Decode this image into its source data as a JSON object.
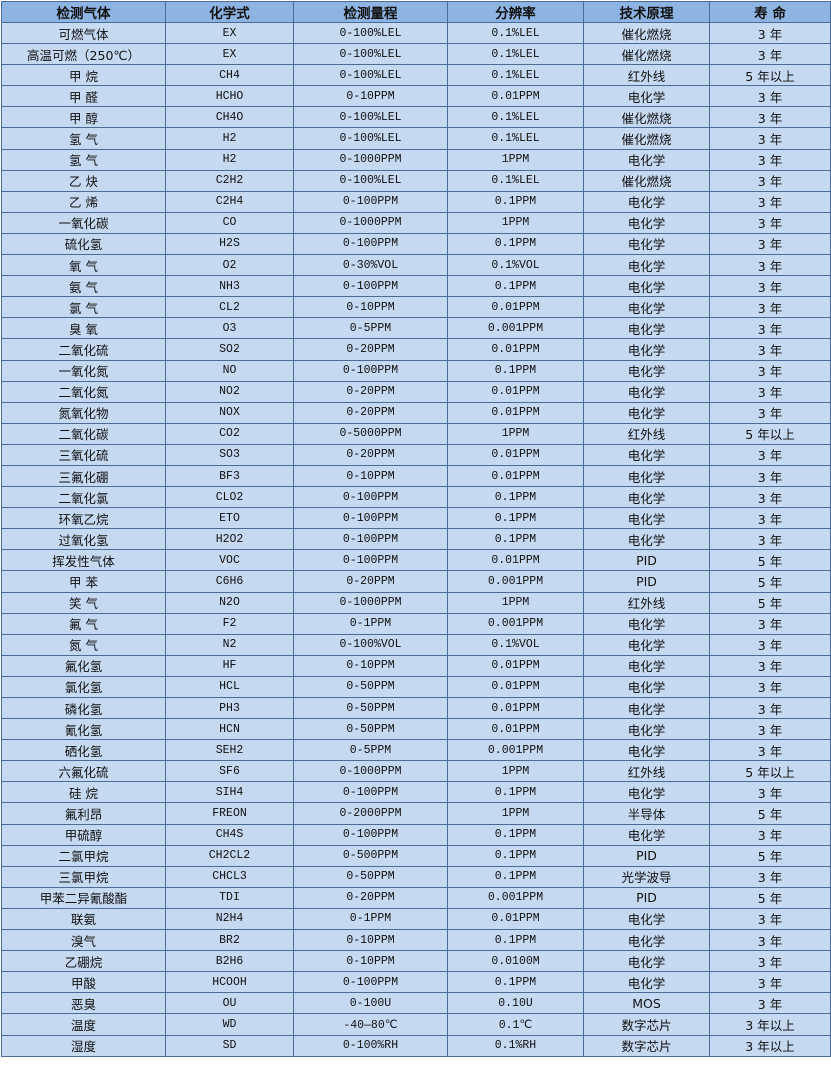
{
  "colors": {
    "header_bg": "#8db4e2",
    "row_bg": "#c5d9f1",
    "border": "#4a6c99"
  },
  "headers": [
    "检测气体",
    "化学式",
    "检测量程",
    "分辨率",
    "技术原理",
    "寿 命"
  ],
  "rows": [
    [
      "可燃气体",
      "EX",
      "0-100%LEL",
      "0.1%LEL",
      "催化燃烧",
      "3 年"
    ],
    [
      "高温可燃（250℃）",
      "EX",
      "0-100%LEL",
      "0.1%LEL",
      "催化燃烧",
      "3 年"
    ],
    [
      "甲 烷",
      "CH4",
      "0-100%LEL",
      "0.1%LEL",
      "红外线",
      "5 年以上"
    ],
    [
      "甲 醛",
      "HCHO",
      "0-10PPM",
      "0.01PPM",
      "电化学",
      "3 年"
    ],
    [
      "甲 醇",
      "CH4O",
      "0-100%LEL",
      "0.1%LEL",
      "催化燃烧",
      "3 年"
    ],
    [
      "氢 气",
      "H2",
      "0-100%LEL",
      "0.1%LEL",
      "催化燃烧",
      "3 年"
    ],
    [
      "氢 气",
      "H2",
      "0-1000PPM",
      "1PPM",
      "电化学",
      "3 年"
    ],
    [
      "乙 炔",
      "C2H2",
      "0-100%LEL",
      "0.1%LEL",
      "催化燃烧",
      "3 年"
    ],
    [
      "乙 烯",
      "C2H4",
      "0-100PPM",
      "0.1PPM",
      "电化学",
      "3 年"
    ],
    [
      "一氧化碳",
      "CO",
      "0-1000PPM",
      "1PPM",
      "电化学",
      "3 年"
    ],
    [
      "硫化氢",
      "H2S",
      "0-100PPM",
      "0.1PPM",
      "电化学",
      "3 年"
    ],
    [
      "氧 气",
      "O2",
      "0-30%VOL",
      "0.1%VOL",
      "电化学",
      "3 年"
    ],
    [
      "氨 气",
      "NH3",
      "0-100PPM",
      "0.1PPM",
      "电化学",
      "3 年"
    ],
    [
      "氯 气",
      "CL2",
      "0-10PPM",
      "0.01PPM",
      "电化学",
      "3 年"
    ],
    [
      "臭 氧",
      "O3",
      "0-5PPM",
      "0.001PPM",
      "电化学",
      "3 年"
    ],
    [
      "二氧化硫",
      "SO2",
      "0-20PPM",
      "0.01PPM",
      "电化学",
      "3 年"
    ],
    [
      "一氧化氮",
      "NO",
      "0-100PPM",
      "0.1PPM",
      "电化学",
      "3 年"
    ],
    [
      "二氧化氮",
      "NO2",
      "0-20PPM",
      "0.01PPM",
      "电化学",
      "3 年"
    ],
    [
      "氮氧化物",
      "NOX",
      "0-20PPM",
      "0.01PPM",
      "电化学",
      "3 年"
    ],
    [
      "二氧化碳",
      "CO2",
      "0-5000PPM",
      "1PPM",
      "红外线",
      "5 年以上"
    ],
    [
      "三氧化硫",
      "SO3",
      "0-20PPM",
      "0.01PPM",
      "电化学",
      "3 年"
    ],
    [
      "三氟化硼",
      "BF3",
      "0-10PPM",
      "0.01PPM",
      "电化学",
      "3 年"
    ],
    [
      "二氧化氯",
      "CLO2",
      "0-100PPM",
      "0.1PPM",
      "电化学",
      "3 年"
    ],
    [
      "环氧乙烷",
      "ETO",
      "0-100PPM",
      "0.1PPM",
      "电化学",
      "3 年"
    ],
    [
      "过氧化氢",
      "H2O2",
      "0-100PPM",
      "0.1PPM",
      "电化学",
      "3 年"
    ],
    [
      "挥发性气体",
      "VOC",
      "0-100PPM",
      "0.01PPM",
      "PID",
      "5 年"
    ],
    [
      "甲 苯",
      "C6H6",
      "0-20PPM",
      "0.001PPM",
      "PID",
      "5 年"
    ],
    [
      "笑 气",
      "N2O",
      "0-1000PPM",
      "1PPM",
      "红外线",
      "5 年"
    ],
    [
      "氟 气",
      "F2",
      "0-1PPM",
      "0.001PPM",
      "电化学",
      "3 年"
    ],
    [
      "氮 气",
      "N2",
      "0-100%VOL",
      "0.1%VOL",
      "电化学",
      "3 年"
    ],
    [
      "氟化氢",
      "HF",
      "0-10PPM",
      "0.01PPM",
      "电化学",
      "3 年"
    ],
    [
      "氯化氢",
      "HCL",
      "0-50PPM",
      "0.01PPM",
      "电化学",
      "3 年"
    ],
    [
      "磷化氢",
      "PH3",
      "0-50PPM",
      "0.01PPM",
      "电化学",
      "3 年"
    ],
    [
      "氰化氢",
      "HCN",
      "0-50PPM",
      "0.01PPM",
      "电化学",
      "3 年"
    ],
    [
      "硒化氢",
      "SEH2",
      "0-5PPM",
      "0.001PPM",
      "电化学",
      "3 年"
    ],
    [
      "六氟化硫",
      "SF6",
      "0-1000PPM",
      "1PPM",
      "红外线",
      "5 年以上"
    ],
    [
      "硅 烷",
      "SIH4",
      "0-100PPM",
      "0.1PPM",
      "电化学",
      "3 年"
    ],
    [
      "氟利昂",
      "FREON",
      "0-2000PPM",
      "1PPM",
      "半导体",
      "5 年"
    ],
    [
      "甲硫醇",
      "CH4S",
      "0-100PPM",
      "0.1PPM",
      "电化学",
      "3 年"
    ],
    [
      "二氯甲烷",
      "CH2CL2",
      "0-500PPM",
      "0.1PPM",
      "PID",
      "5 年"
    ],
    [
      "三氯甲烷",
      "CHCL3",
      "0-50PPM",
      "0.1PPM",
      "光学波导",
      "3 年"
    ],
    [
      "甲苯二异氰酸酯",
      "TDI",
      "0-20PPM",
      "0.001PPM",
      "PID",
      "5 年"
    ],
    [
      "联氨",
      "N2H4",
      "0-1PPM",
      "0.01PPM",
      "电化学",
      "3 年"
    ],
    [
      "溴气",
      "BR2",
      "0-10PPM",
      "0.1PPM",
      "电化学",
      "3 年"
    ],
    [
      "乙硼烷",
      "B2H6",
      "0-10PPM",
      "0.0100M",
      "电化学",
      "3 年"
    ],
    [
      "甲酸",
      "HCOOH",
      "0-100PPM",
      "0.1PPM",
      "电化学",
      "3 年"
    ],
    [
      "恶臭",
      "OU",
      "0-100U",
      "0.10U",
      "MOS",
      "3 年"
    ],
    [
      "温度",
      "WD",
      "-40—80℃",
      "0.1℃",
      "数字芯片",
      "3 年以上"
    ],
    [
      "湿度",
      "SD",
      "0-100%RH",
      "0.1%RH",
      "数字芯片",
      "3 年以上"
    ]
  ]
}
